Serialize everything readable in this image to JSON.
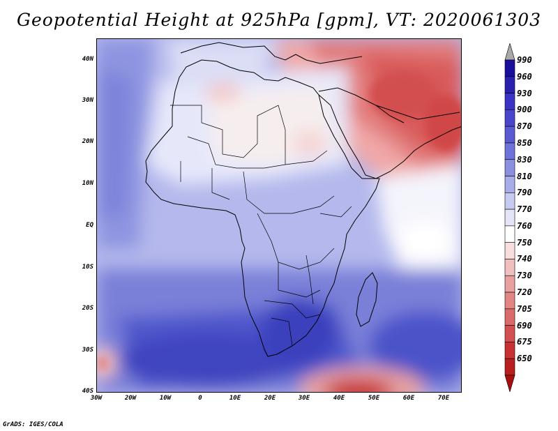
{
  "title": "Geopotential Height at 925hPa [gpm], VT: 2020061303",
  "credit": "GrADS: IGES/COLA",
  "map": {
    "x_ticks": [
      "30W",
      "20W",
      "10W",
      "0",
      "10E",
      "20E",
      "30E",
      "40E",
      "50E",
      "60E",
      "70E"
    ],
    "y_ticks": [
      "40N",
      "30N",
      "20N",
      "10N",
      "EQ",
      "10S",
      "20S",
      "30S",
      "40S"
    ]
  },
  "colorbar": {
    "levels": [
      "990",
      "960",
      "930",
      "900",
      "870",
      "850",
      "830",
      "810",
      "790",
      "770",
      "760",
      "750",
      "740",
      "730",
      "720",
      "705",
      "690",
      "675",
      "650"
    ],
    "colors": [
      "#a9a9a9",
      "#1a0f9a",
      "#2b1fb0",
      "#3a33c3",
      "#4a46cc",
      "#5a5ad2",
      "#6e72d9",
      "#8a8fe0",
      "#a8ace8",
      "#c8cbf1",
      "#e4e6f8",
      "#ffffff",
      "#f8dede",
      "#f0c0c0",
      "#e9a0a0",
      "#e28585",
      "#db6a6a",
      "#d35050",
      "#c83232",
      "#b82020",
      "#a80f0f"
    ]
  }
}
